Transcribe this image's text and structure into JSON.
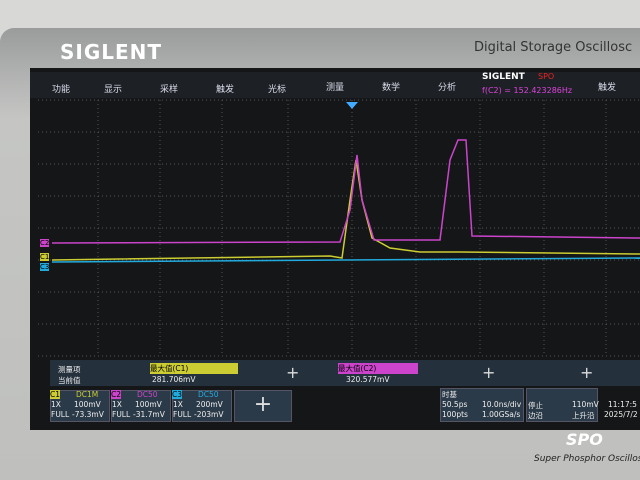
{
  "header": {
    "brand": "SIGLENT",
    "product": "Digital Storage Oscillosc"
  },
  "menu": {
    "items": [
      "功能",
      "显示",
      "采样",
      "触发",
      "光标",
      "测量",
      "数学",
      "分析"
    ],
    "brand": "SIGLENT",
    "badge": "SPO",
    "frequency": "f(C2) = 152.423286Hz",
    "trigger": "触发"
  },
  "traces": {
    "c2": "C2",
    "c1": "C1",
    "c3": "C3"
  },
  "measure": {
    "item_label": "测量项",
    "current_label": "当前值",
    "m1_name": "最大值(C1)",
    "m1_value": "281.706mV",
    "m2_name": "最大值(C2)",
    "m2_value": "320.577mV"
  },
  "channels": [
    {
      "name": "C1",
      "coupling": "DC1M",
      "probe": "1X",
      "scale": "100mV",
      "bw": "FULL",
      "offset": "-73.3mV"
    },
    {
      "name": "C2",
      "coupling": "DC50",
      "probe": "1X",
      "scale": "100mV",
      "bw": "FULL",
      "offset": "-31.7mV"
    },
    {
      "name": "C3",
      "coupling": "DC50",
      "probe": "1X",
      "scale": "200mV",
      "bw": "FULL",
      "offset": "-203mV"
    }
  ],
  "timebase": {
    "label": "时基",
    "delay": "50.5ps",
    "div": "10.0ns/div",
    "points": "100pts",
    "rate": "1.00GSa/s"
  },
  "trigger": {
    "state": "停止",
    "level": "110mV",
    "type": "边沿",
    "slope": "上升沿"
  },
  "clock": {
    "time": "11:17:5",
    "date": "2025/7/2"
  },
  "footer": {
    "logo": "SPO",
    "tagline": "Super Phosphor Oscillosco"
  }
}
